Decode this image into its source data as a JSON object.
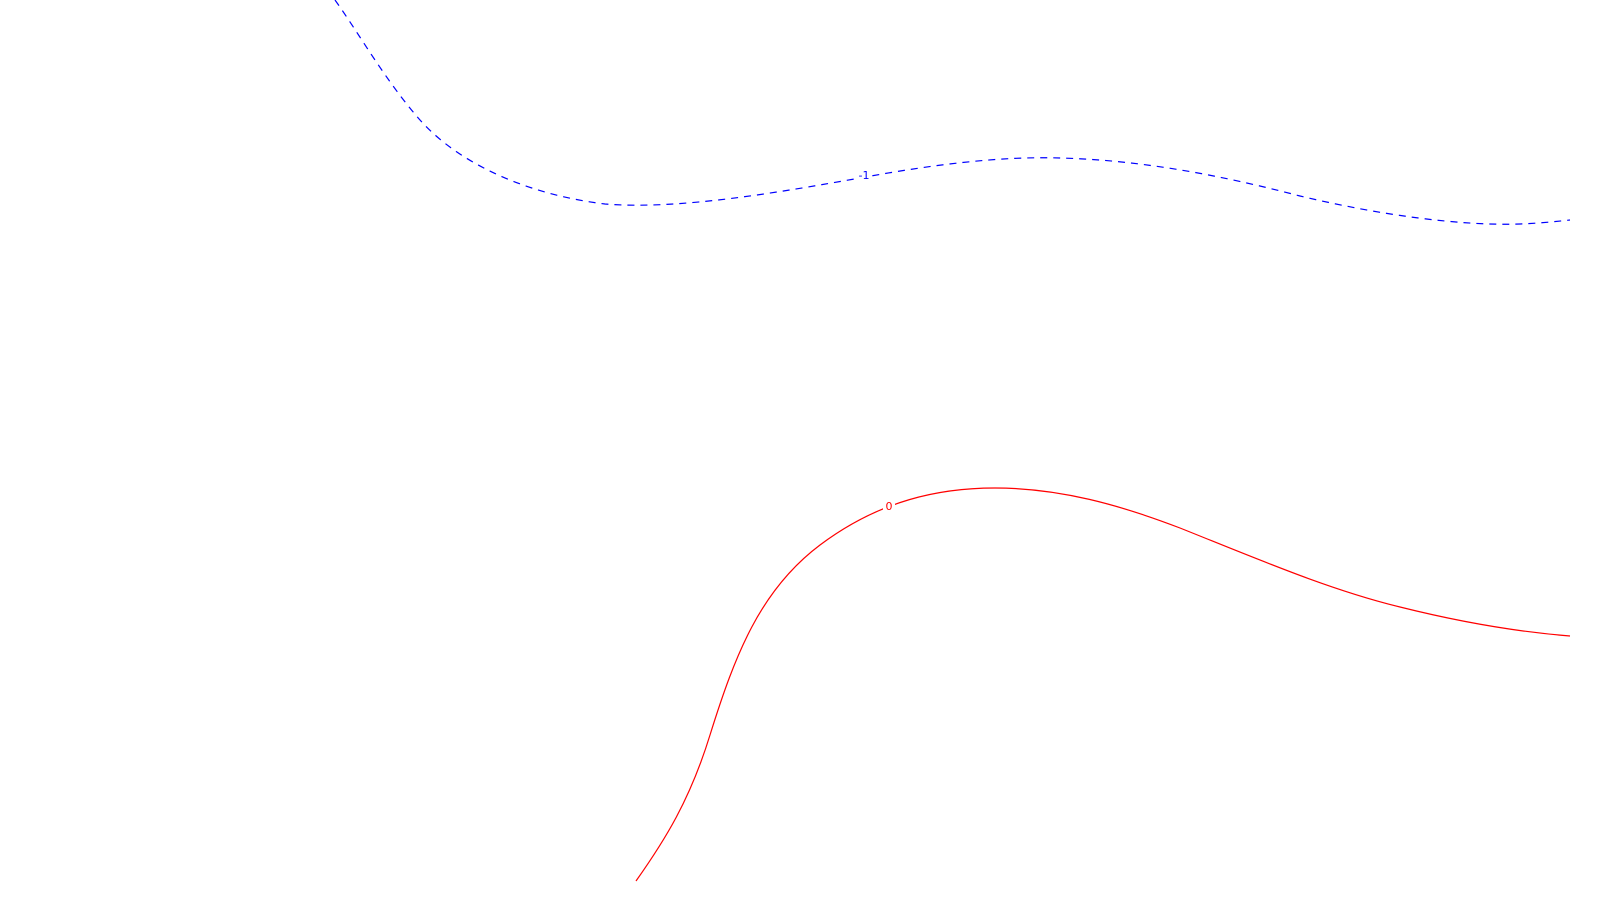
{
  "chart_data": {
    "type": "line",
    "title": "",
    "xlabel": "",
    "ylabel": "",
    "grid": false,
    "legend": "none",
    "series": [
      {
        "level_label": "-1",
        "color": "#0000ff",
        "style": "dashed"
      },
      {
        "level_label": "0",
        "color": "#ff0000",
        "style": "solid"
      }
    ]
  }
}
